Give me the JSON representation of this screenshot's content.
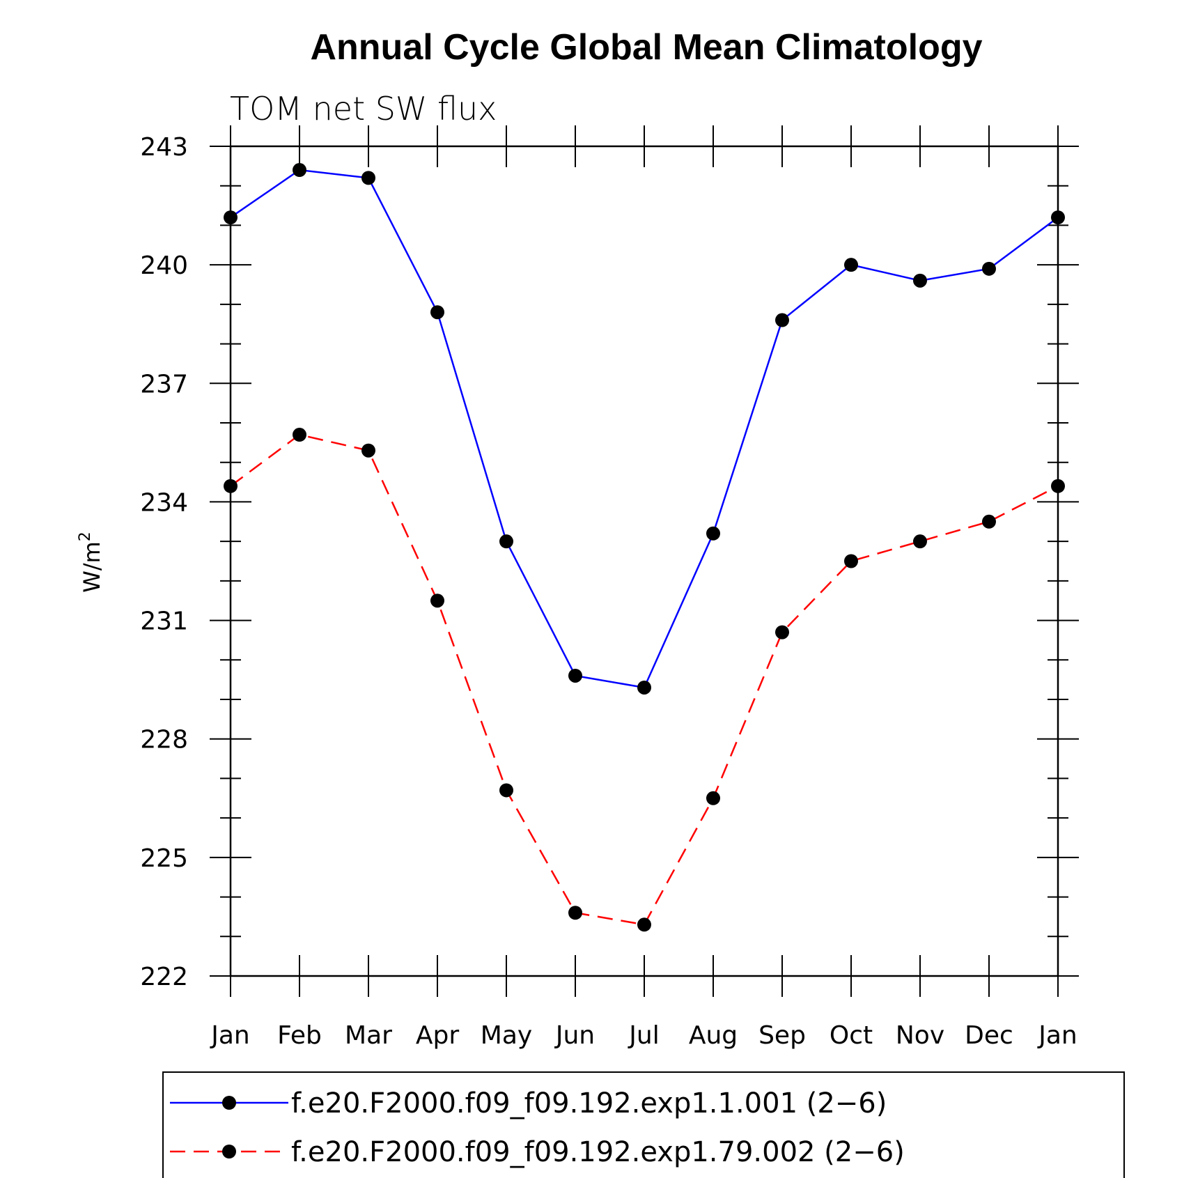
{
  "chart_data": {
    "type": "line",
    "title": "Annual Cycle Global Mean Climatology",
    "subtitle": "TOM net SW flux",
    "ylabel": "W/m",
    "ylabel_sup": "2",
    "categories": [
      "Jan",
      "Feb",
      "Mar",
      "Apr",
      "May",
      "Jun",
      "Jul",
      "Aug",
      "Sep",
      "Oct",
      "Nov",
      "Dec",
      "Jan"
    ],
    "ylim": [
      222,
      243
    ],
    "yticks": [
      222,
      225,
      228,
      231,
      234,
      237,
      240,
      243
    ],
    "grid": false,
    "legend_position": "bottom",
    "series": [
      {
        "name": "f.e20.F2000.f09_f09.192.exp1.1.001 (2−6)",
        "color": "#0000ff",
        "dash": "solid",
        "marker": "filled-circle",
        "values": [
          241.2,
          242.4,
          242.2,
          238.8,
          233.0,
          229.6,
          229.3,
          233.2,
          238.6,
          240.0,
          239.6,
          239.9,
          241.2
        ]
      },
      {
        "name": "f.e20.F2000.f09_f09.192.exp1.79.002 (2−6)",
        "color": "#ff0000",
        "dash": "dashed",
        "marker": "filled-circle",
        "values": [
          234.4,
          235.7,
          235.3,
          231.5,
          226.7,
          223.6,
          223.3,
          226.5,
          230.7,
          232.5,
          233.0,
          233.5,
          234.4
        ]
      }
    ]
  }
}
